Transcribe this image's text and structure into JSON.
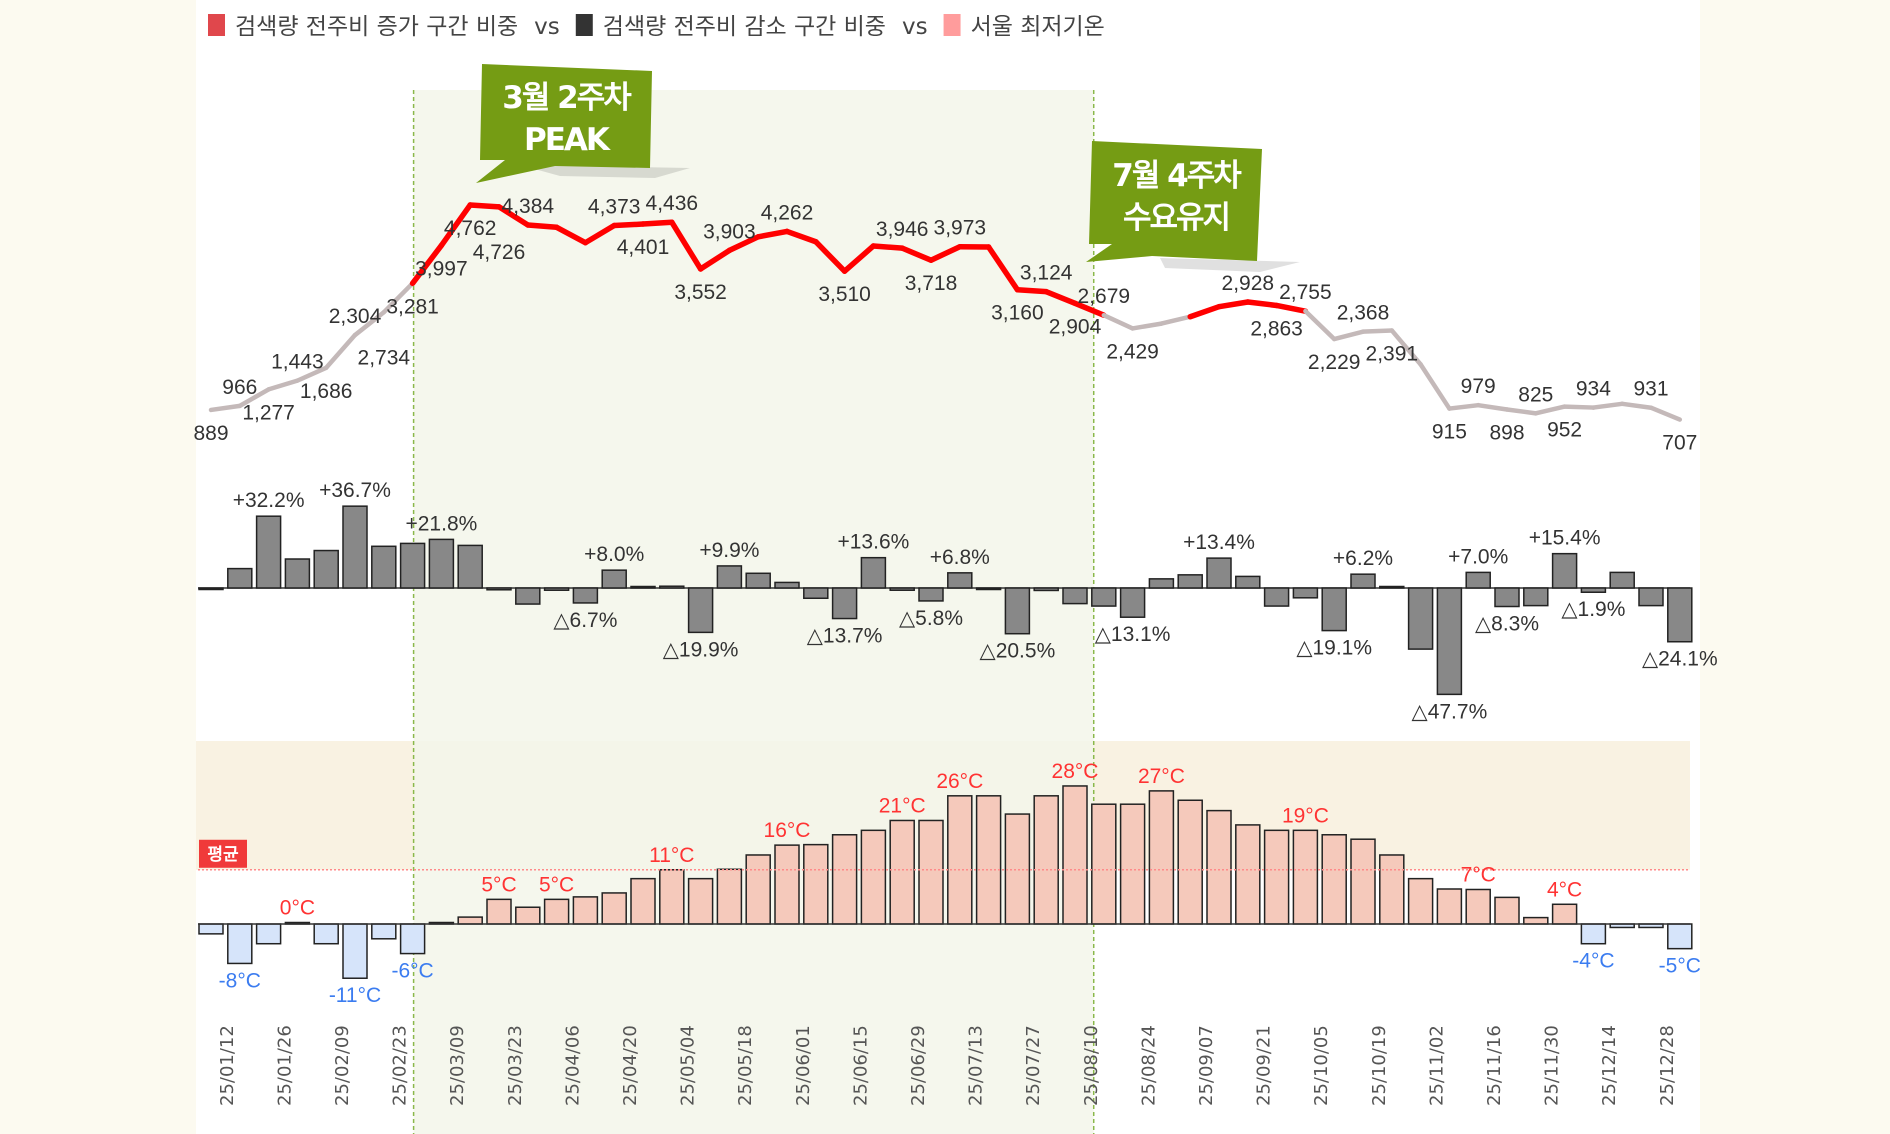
{
  "legend": [
    {
      "label": "검색량 전주비 증가 구간 비중",
      "color": "#e0474c"
    },
    {
      "label": "vs",
      "color": ""
    },
    {
      "label": "검색량 전주비 감소 구간 비중",
      "color": "#333333"
    },
    {
      "label": "vs",
      "color": ""
    },
    {
      "label": "서울 최저기온",
      "color": "#ff9c9c"
    }
  ],
  "callouts": [
    {
      "lines": [
        "3월 2주차",
        "PEAK"
      ],
      "color": "#759c14"
    },
    {
      "lines": [
        "7월 4주차",
        "수요유지"
      ],
      "color": "#759c14"
    }
  ],
  "average_label": "평균",
  "colors": {
    "line_highlight": "#ff0000",
    "line_normal": "#c4b9b9",
    "change_bar": "#888888",
    "temp_positive": "#f5c9bb",
    "temp_negative": "#d6e4fa",
    "temp_label_positive": "#ff3333",
    "temp_label_negative": "#3b7cf0",
    "highlight_period": "#f3f6ea",
    "average_line": "#ff8a8a"
  },
  "x_ticks": [
    "25/01/12",
    "25/01/26",
    "25/02/09",
    "25/02/23",
    "25/03/09",
    "25/03/23",
    "25/04/06",
    "25/04/20",
    "25/05/04",
    "25/05/18",
    "25/06/01",
    "25/06/15",
    "25/06/29",
    "25/07/13",
    "25/07/27",
    "25/08/10",
    "25/08/24",
    "25/09/07",
    "25/09/21",
    "25/10/05",
    "25/10/19",
    "25/11/02",
    "25/11/16",
    "25/11/30",
    "25/12/14",
    "25/12/28"
  ],
  "chart_data": [
    {
      "type": "line",
      "name": "search volume",
      "values": [
        889,
        966,
        1277,
        1443,
        1686,
        2304,
        2734,
        3281,
        3997,
        4762,
        4726,
        4384,
        4340,
        4049,
        4373,
        4401,
        4436,
        3552,
        3903,
        4160,
        4262,
        4067,
        3510,
        3987,
        3946,
        3718,
        3973,
        3968,
        3160,
        3124,
        2904,
        2679,
        2429,
        2520,
        2650,
        2840,
        2928,
        2863,
        2755,
        2229,
        2368,
        2391,
        1750,
        915,
        979,
        898,
        825,
        952,
        934,
        1005,
        931,
        707
      ],
      "labels": [
        "889",
        "966",
        "1,277",
        "1,443",
        "1,686",
        "2,304",
        "2,734",
        "3,281",
        "3,997",
        "4,762",
        "4,726",
        "4,384",
        null,
        null,
        "4,373",
        "4,401",
        "4,436",
        "3,552",
        "3,903",
        null,
        "4,262",
        null,
        "3,510",
        null,
        "3,946",
        "3,718",
        "3,973",
        null,
        "3,160",
        "3,124",
        "2,904",
        "2,679",
        "2,429",
        null,
        null,
        null,
        "2,928",
        "2,863",
        "2,755",
        "2,229",
        "2,368",
        "2,391",
        null,
        "915",
        "979",
        "898",
        "825",
        "952",
        "934",
        null,
        "931",
        "707"
      ],
      "highlight_ranges": [
        [
          7,
          31
        ],
        [
          34,
          38
        ]
      ],
      "ylim": [
        0,
        5000
      ]
    },
    {
      "type": "bar",
      "name": "week-over-week change (%)",
      "values": [
        -0.3,
        8.7,
        32.2,
        13.0,
        16.8,
        36.7,
        18.7,
        20.0,
        21.8,
        19.1,
        -0.8,
        -7.2,
        -1.0,
        -6.7,
        8.0,
        0.6,
        0.8,
        -19.9,
        9.9,
        6.6,
        2.5,
        -4.6,
        -13.7,
        13.6,
        -1.0,
        -5.8,
        6.8,
        -0.2,
        -20.5,
        -1.1,
        -7.0,
        -8.1,
        -13.1,
        4.1,
        5.9,
        13.4,
        5.2,
        -8.1,
        -4.4,
        -19.1,
        6.2,
        0.3,
        -27.4,
        -47.7,
        7.0,
        -8.3,
        -7.9,
        15.4,
        -1.9,
        7.0,
        -7.9,
        -24.1
      ],
      "labels": [
        null,
        null,
        "+32.2%",
        null,
        null,
        "+36.7%",
        null,
        null,
        "+21.8%",
        null,
        null,
        null,
        null,
        "△6.7%",
        "+8.0%",
        null,
        null,
        "△19.9%",
        "+9.9%",
        null,
        null,
        null,
        "△13.7%",
        "+13.6%",
        null,
        "△5.8%",
        "+6.8%",
        null,
        "△20.5%",
        null,
        null,
        null,
        "△13.1%",
        null,
        null,
        "+13.4%",
        null,
        null,
        null,
        "△19.1%",
        "+6.2%",
        null,
        null,
        "△47.7%",
        "+7.0%",
        "△8.3%",
        null,
        "+15.4%",
        "△1.9%",
        null,
        null,
        "△24.1%"
      ]
    },
    {
      "type": "bar",
      "name": "서울 최저기온",
      "unit": "°C",
      "values": [
        -2,
        -8,
        -4,
        0,
        -4,
        -11,
        -3,
        -6,
        0,
        1.4,
        5,
        3.4,
        5,
        5.5,
        6.3,
        9.2,
        11,
        9.2,
        11.1,
        14,
        16,
        16.1,
        18.1,
        19,
        21,
        21,
        26,
        26,
        22.3,
        26,
        28,
        24.3,
        24.3,
        27,
        25.1,
        23,
        20.1,
        19,
        19,
        18.1,
        17.2,
        14,
        9.2,
        7.1,
        7,
        5.4,
        1.3,
        4,
        -4,
        -0.7,
        -0.7,
        -5
      ],
      "labels": [
        null,
        "-8°C",
        null,
        "0°C",
        null,
        "-11°C",
        null,
        "-6°C",
        null,
        null,
        "5°C",
        null,
        "5°C",
        null,
        null,
        null,
        "11°C",
        null,
        null,
        null,
        "16°C",
        null,
        null,
        null,
        "21°C",
        null,
        "26°C",
        null,
        null,
        null,
        "28°C",
        null,
        null,
        "27°C",
        null,
        null,
        null,
        null,
        "19°C",
        null,
        null,
        null,
        null,
        null,
        "7°C",
        null,
        null,
        "4°C",
        "-4°C",
        null,
        null,
        "-5°C"
      ],
      "average": 11
    }
  ],
  "highlight_period": {
    "start_index": 7,
    "end_index": 30
  }
}
